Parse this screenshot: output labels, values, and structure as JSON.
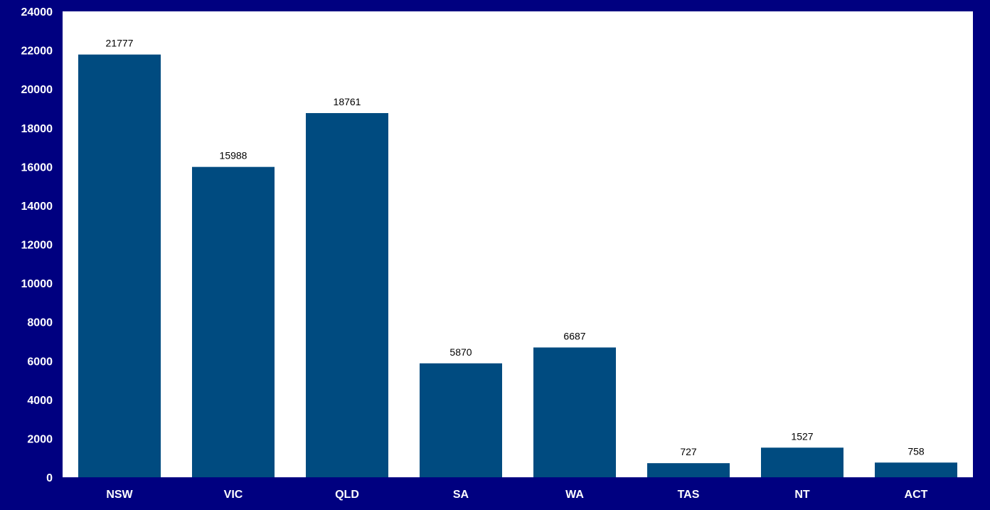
{
  "chart_data": {
    "type": "bar",
    "title": "",
    "xlabel": "",
    "ylabel": "",
    "categories": [
      "NSW",
      "VIC",
      "QLD",
      "SA",
      "WA",
      "TAS",
      "NT",
      "ACT"
    ],
    "values": [
      21777,
      15988,
      18761,
      5870,
      6687,
      727,
      1527,
      758
    ],
    "ylim": [
      0,
      24000
    ],
    "yticks": [
      0,
      2000,
      4000,
      6000,
      8000,
      10000,
      12000,
      14000,
      16000,
      18000,
      20000,
      22000,
      24000
    ],
    "data_labels": [
      "21777",
      "15988",
      "18761",
      "5870",
      "6687",
      "727",
      "1527",
      "758"
    ],
    "grid": false,
    "legend": "none",
    "colors": {
      "background": "#000080",
      "plot_area": "#ffffff",
      "bar": "#004b80",
      "tick_text": "#ffffff",
      "data_label_text": "#000000"
    }
  }
}
